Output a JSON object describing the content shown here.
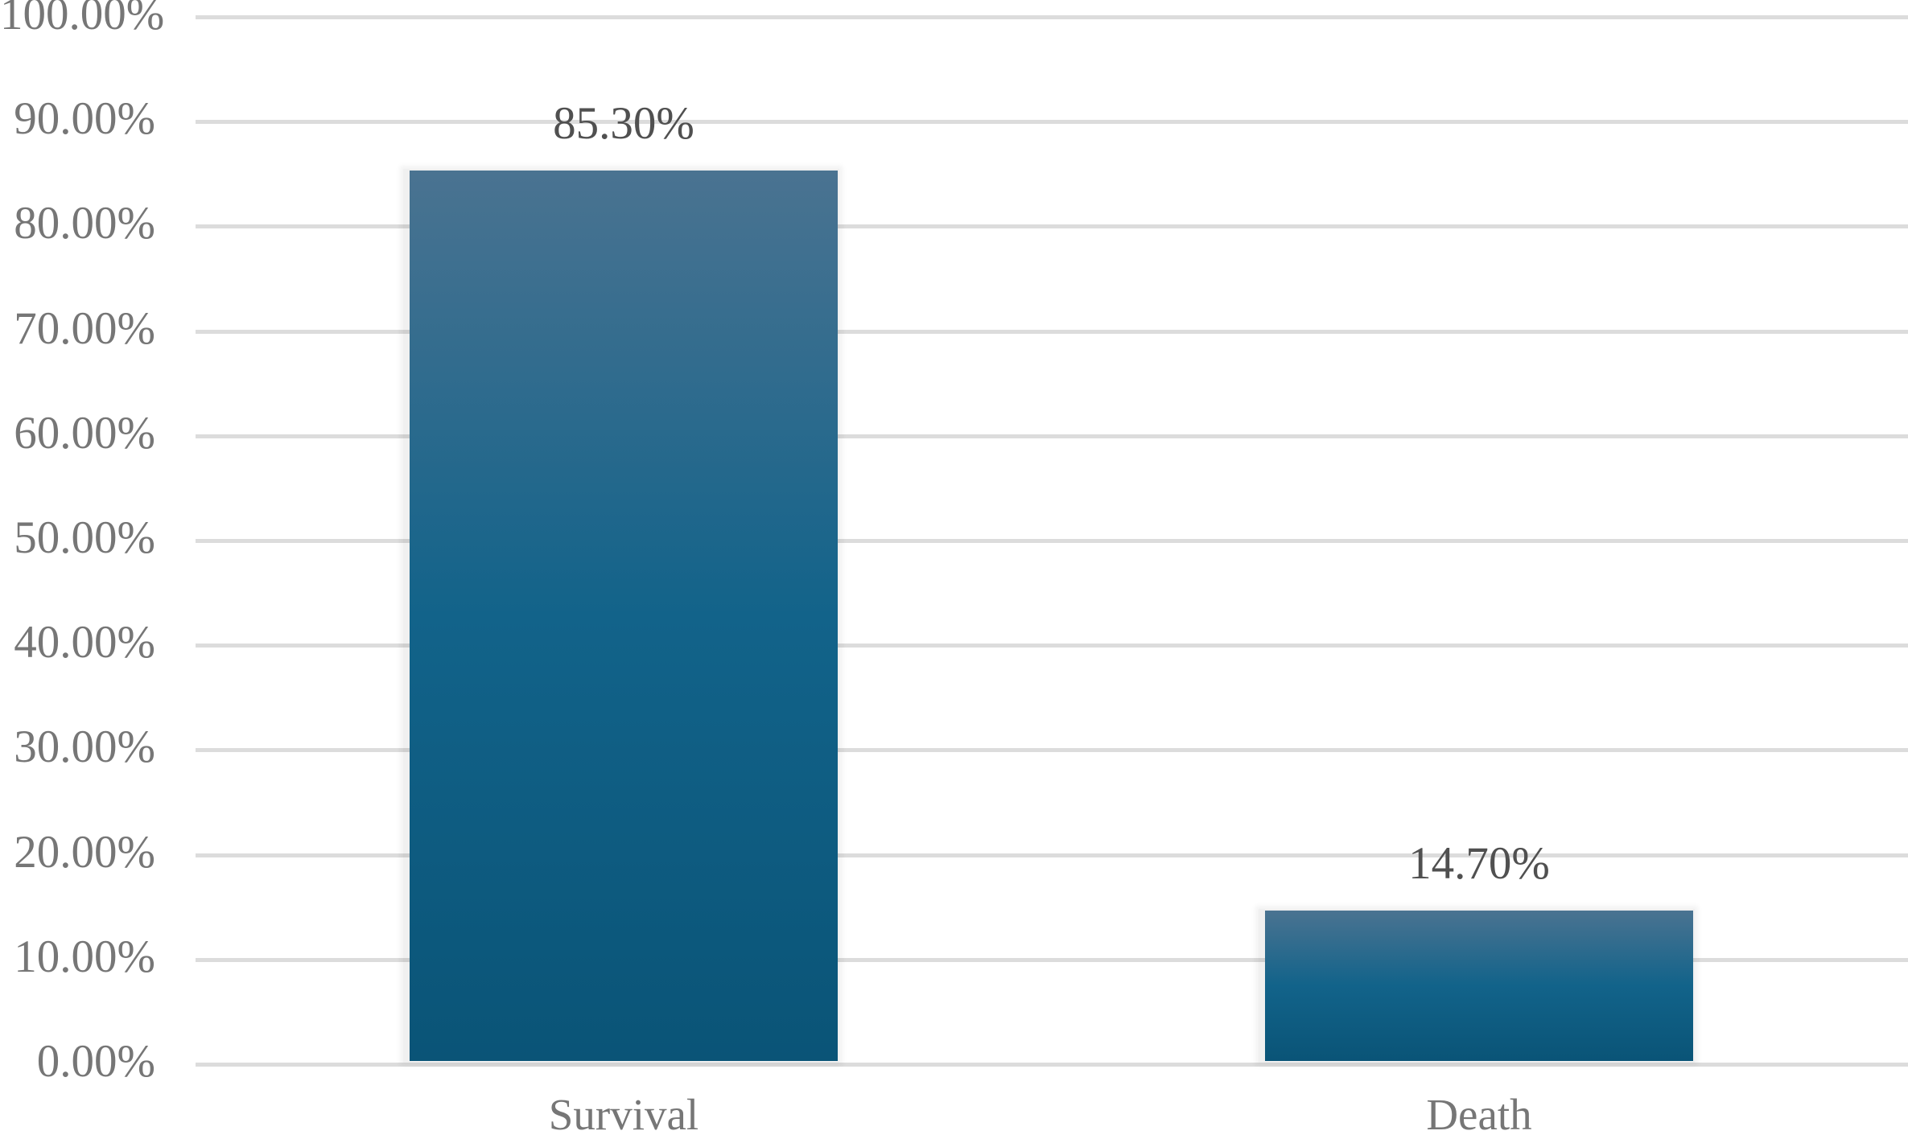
{
  "chart_data": {
    "type": "bar",
    "title": "",
    "xlabel": "",
    "ylabel": "",
    "categories": [
      "Survival",
      "Death"
    ],
    "values": [
      85.3,
      14.7
    ],
    "data_labels": [
      "85.30%",
      "14.70%"
    ],
    "ylim": [
      0,
      100
    ],
    "yticks": [
      0,
      10,
      20,
      30,
      40,
      50,
      60,
      70,
      80,
      90,
      100
    ],
    "ytick_labels": [
      "0.00%",
      "10.00%",
      "20.00%",
      "30.00%",
      "40.00%",
      "50.00%",
      "60.00%",
      "70.00%",
      "80.00%",
      "90.00%",
      "100.00%"
    ],
    "grid": true,
    "legend": null,
    "colors": {
      "bar_top": "#4a7391",
      "bar_mid": "#12638a",
      "bar_bottom": "#0a5477",
      "gridline": "#dcdcdc",
      "axis_text": "#767676",
      "data_label_text": "#505050"
    }
  }
}
